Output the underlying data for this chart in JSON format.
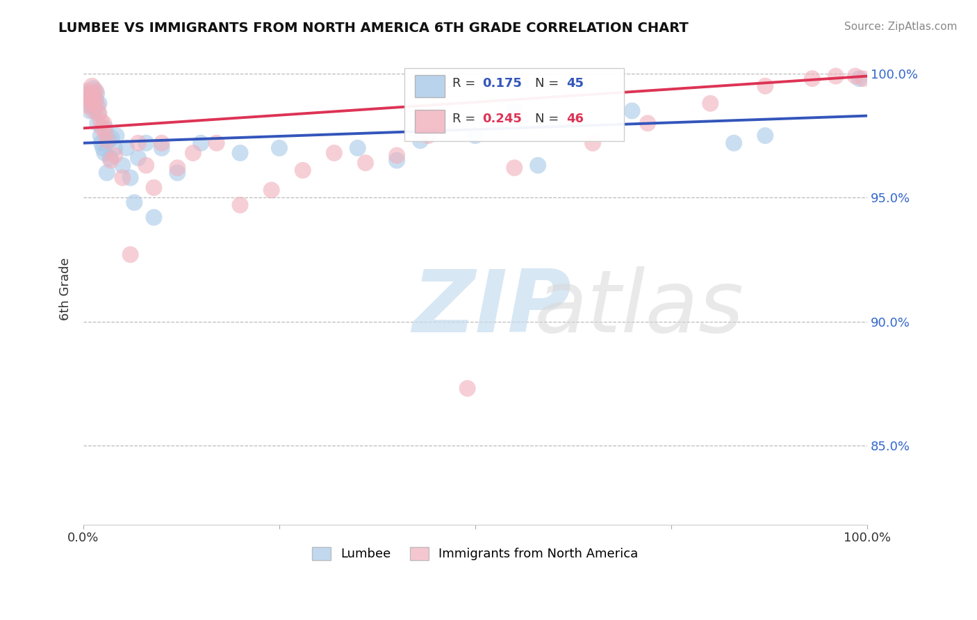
{
  "title": "LUMBEE VS IMMIGRANTS FROM NORTH AMERICA 6TH GRADE CORRELATION CHART",
  "source": "Source: ZipAtlas.com",
  "ylabel": "6th Grade",
  "xlim": [
    0.0,
    1.0
  ],
  "ylim": [
    0.818,
    1.008
  ],
  "yticks": [
    0.85,
    0.9,
    0.95,
    1.0
  ],
  "ytick_labels": [
    "85.0%",
    "90.0%",
    "95.0%",
    "100.0%"
  ],
  "legend_lumbee": "Lumbee",
  "legend_immigrants": "Immigrants from North America",
  "blue_color": "#a8c8e8",
  "pink_color": "#f0b0bc",
  "blue_line_color": "#3355bb",
  "pink_line_color": "#dd3355",
  "R_blue": 0.175,
  "N_blue": 45,
  "R_pink": 0.245,
  "N_pink": 46,
  "blue_dots_x": [
    0.003,
    0.006,
    0.008,
    0.01,
    0.012,
    0.013,
    0.014,
    0.016,
    0.017,
    0.018,
    0.019,
    0.02,
    0.022,
    0.023,
    0.025,
    0.027,
    0.028,
    0.03,
    0.032,
    0.034,
    0.036,
    0.04,
    0.042,
    0.05,
    0.055,
    0.06,
    0.065,
    0.07,
    0.08,
    0.09,
    0.1,
    0.12,
    0.15,
    0.2,
    0.25,
    0.35,
    0.4,
    0.43,
    0.5,
    0.55,
    0.58,
    0.7,
    0.83,
    0.87,
    0.99
  ],
  "blue_dots_y": [
    0.992,
    0.988,
    0.985,
    0.991,
    0.99,
    0.994,
    0.986,
    0.989,
    0.992,
    0.98,
    0.984,
    0.988,
    0.975,
    0.972,
    0.97,
    0.968,
    0.978,
    0.96,
    0.973,
    0.966,
    0.974,
    0.97,
    0.975,
    0.963,
    0.97,
    0.958,
    0.948,
    0.966,
    0.972,
    0.942,
    0.97,
    0.96,
    0.972,
    0.968,
    0.97,
    0.97,
    0.965,
    0.973,
    0.975,
    0.985,
    0.963,
    0.985,
    0.972,
    0.975,
    0.998
  ],
  "pink_dots_x": [
    0.002,
    0.004,
    0.006,
    0.008,
    0.01,
    0.011,
    0.012,
    0.013,
    0.014,
    0.015,
    0.016,
    0.018,
    0.02,
    0.022,
    0.024,
    0.026,
    0.028,
    0.03,
    0.035,
    0.04,
    0.05,
    0.06,
    0.07,
    0.08,
    0.09,
    0.1,
    0.12,
    0.14,
    0.17,
    0.2,
    0.24,
    0.28,
    0.32,
    0.36,
    0.4,
    0.44,
    0.49,
    0.55,
    0.65,
    0.72,
    0.8,
    0.87,
    0.93,
    0.96,
    0.985,
    0.995
  ],
  "pink_dots_y": [
    0.99,
    0.993,
    0.987,
    0.992,
    0.989,
    0.995,
    0.988,
    0.985,
    0.992,
    0.99,
    0.993,
    0.987,
    0.984,
    0.981,
    0.978,
    0.98,
    0.976,
    0.973,
    0.965,
    0.967,
    0.958,
    0.927,
    0.972,
    0.963,
    0.954,
    0.972,
    0.962,
    0.968,
    0.972,
    0.947,
    0.953,
    0.961,
    0.968,
    0.964,
    0.967,
    0.975,
    0.873,
    0.962,
    0.972,
    0.98,
    0.988,
    0.995,
    0.998,
    0.999,
    0.999,
    0.998
  ],
  "background_color": "#ffffff"
}
